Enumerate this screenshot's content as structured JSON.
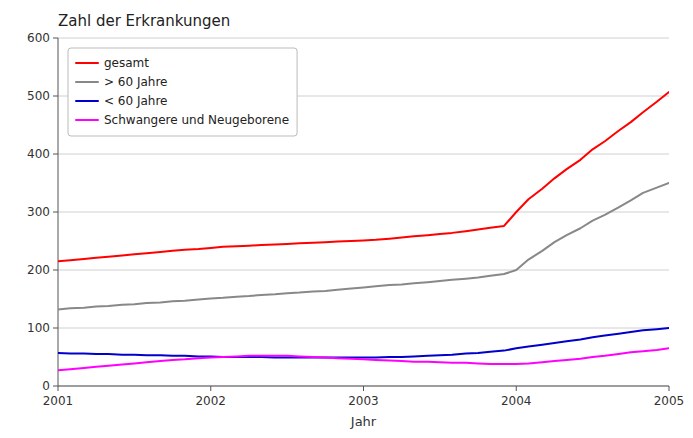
{
  "chart_data": {
    "type": "line",
    "title": "Zahl der Erkrankungen",
    "xlabel": "Jahr",
    "xlim": [
      2001,
      2005
    ],
    "xticks": [
      2001,
      2002,
      2003,
      2004,
      2005
    ],
    "ylim": [
      0,
      600
    ],
    "yticks": [
      0,
      100,
      200,
      300,
      400,
      500,
      600
    ],
    "grid": true,
    "legend": "upper left",
    "x": [
      2001.0,
      2001.08,
      2001.17,
      2001.25,
      2001.33,
      2001.42,
      2001.5,
      2001.58,
      2001.67,
      2001.75,
      2001.83,
      2001.92,
      2002.0,
      2002.08,
      2002.17,
      2002.25,
      2002.33,
      2002.42,
      2002.5,
      2002.58,
      2002.67,
      2002.75,
      2002.83,
      2002.92,
      2003.0,
      2003.08,
      2003.17,
      2003.25,
      2003.33,
      2003.42,
      2003.5,
      2003.58,
      2003.67,
      2003.75,
      2003.83,
      2003.92,
      2004.0,
      2004.08,
      2004.17,
      2004.25,
      2004.33,
      2004.42,
      2004.5,
      2004.58,
      2004.67,
      2004.75,
      2004.83,
      2004.92,
      2005.0
    ],
    "series": [
      {
        "name": "gesamt",
        "color": "#ff0000",
        "values": [
          215,
          217,
          219,
          221,
          223,
          225,
          227,
          229,
          231,
          233,
          235,
          236,
          238,
          240,
          241,
          242,
          243,
          244,
          245,
          246,
          247,
          248,
          249,
          250,
          251,
          252,
          254,
          256,
          258,
          260,
          262,
          264,
          267,
          270,
          273,
          276,
          300,
          322,
          340,
          358,
          374,
          390,
          408,
          422,
          440,
          455,
          472,
          490,
          507
        ]
      },
      {
        "name": "> 60 Jahre",
        "color": "#888888",
        "values": [
          132,
          134,
          135,
          137,
          138,
          140,
          141,
          143,
          144,
          146,
          147,
          149,
          151,
          152,
          154,
          155,
          157,
          158,
          160,
          161,
          163,
          164,
          166,
          168,
          170,
          172,
          174,
          175,
          177,
          179,
          181,
          183,
          185,
          187,
          190,
          193,
          200,
          218,
          233,
          248,
          260,
          272,
          285,
          295,
          308,
          320,
          333,
          342,
          350
        ]
      },
      {
        "name": "< 60 Jahre",
        "color": "#0000cc",
        "values": [
          57,
          56,
          56,
          55,
          55,
          54,
          54,
          53,
          53,
          52,
          52,
          51,
          51,
          50,
          50,
          50,
          50,
          49,
          49,
          49,
          49,
          49,
          49,
          49,
          49,
          49,
          50,
          50,
          51,
          52,
          53,
          54,
          56,
          57,
          59,
          61,
          65,
          68,
          71,
          74,
          77,
          80,
          84,
          87,
          90,
          93,
          96,
          98,
          100
        ]
      },
      {
        "name": "Schwangere und Neugeborene",
        "color": "#ff00ff",
        "values": [
          27,
          29,
          31,
          33,
          35,
          37,
          39,
          41,
          43,
          45,
          46,
          48,
          49,
          50,
          51,
          52,
          52,
          52,
          52,
          51,
          50,
          49,
          48,
          47,
          46,
          45,
          44,
          43,
          42,
          42,
          41,
          40,
          40,
          39,
          38,
          38,
          38,
          39,
          41,
          43,
          45,
          47,
          50,
          52,
          55,
          58,
          60,
          62,
          65
        ]
      }
    ]
  }
}
